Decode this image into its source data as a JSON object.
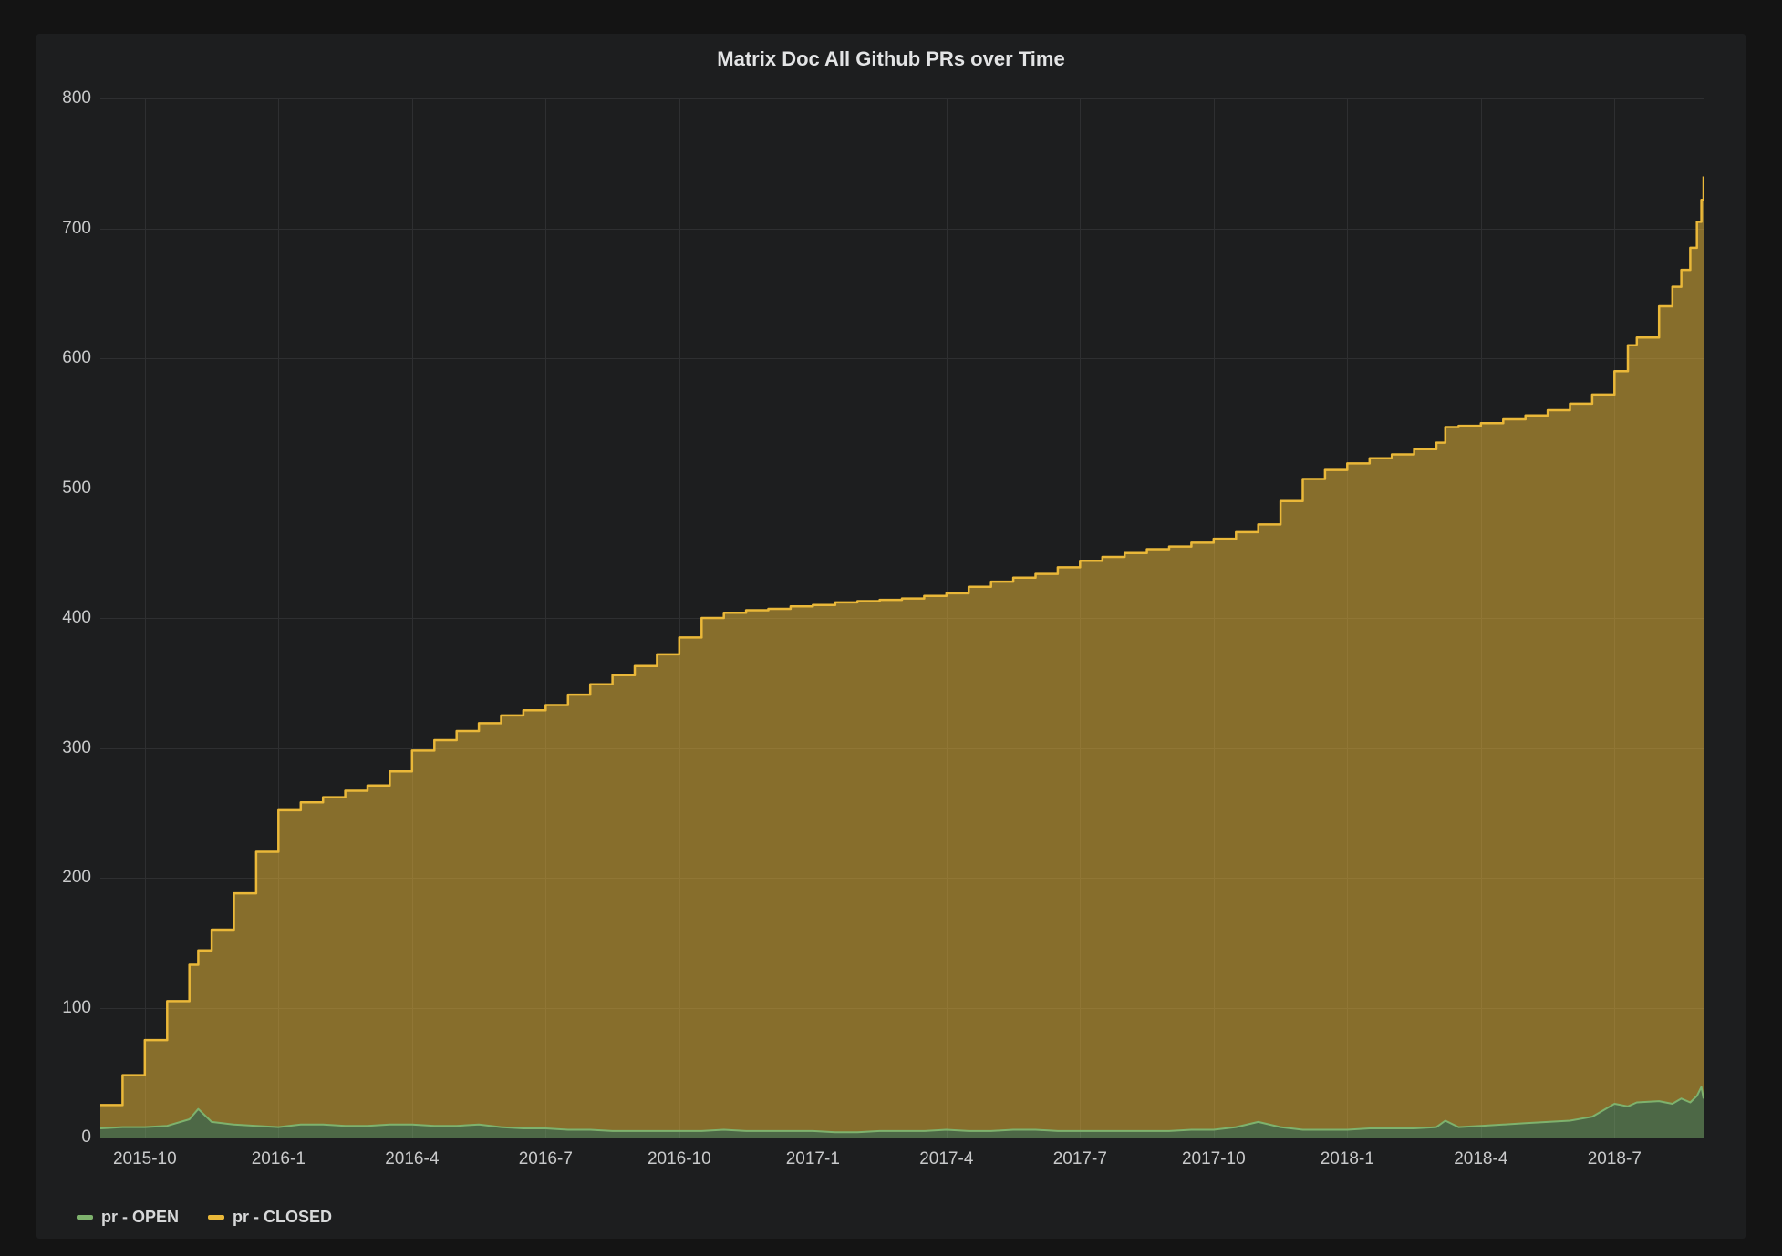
{
  "panel": {
    "title": "Matrix Doc All Github PRs over Time"
  },
  "legend": {
    "items": [
      {
        "label": "pr - OPEN",
        "color": "#7eb26d"
      },
      {
        "label": "pr - CLOSED",
        "color": "#eab839"
      }
    ]
  },
  "colors": {
    "page_bg": "#141414",
    "panel_bg": "#1d1e1f",
    "grid": "#2e2f31",
    "tick_text": "#c9cacb",
    "title_text": "#e3e4e5",
    "legend_text": "#d7d8d9",
    "open_line": "#7eb26d",
    "open_fill": "rgba(126,178,109,0.5)",
    "closed_line": "#eab839",
    "closed_fill": "rgba(234,184,57,0.52)"
  },
  "chart_data": {
    "type": "area",
    "stacked": true,
    "title": "Matrix Doc All Github PRs over Time",
    "xlabel": "",
    "ylabel": "",
    "grid": true,
    "legend_position": "bottom-left",
    "ylim": [
      0,
      800
    ],
    "y_ticks": [
      0,
      100,
      200,
      300,
      400,
      500,
      600,
      700,
      800
    ],
    "x_axis": {
      "unit": "months since 2015-09",
      "start": "2015-09",
      "end": "2018-09",
      "months_span": 36,
      "ticks": [
        {
          "m": 1,
          "label": "2015-10"
        },
        {
          "m": 4,
          "label": "2016-1"
        },
        {
          "m": 7,
          "label": "2016-4"
        },
        {
          "m": 10,
          "label": "2016-7"
        },
        {
          "m": 13,
          "label": "2016-10"
        },
        {
          "m": 16,
          "label": "2017-1"
        },
        {
          "m": 19,
          "label": "2017-4"
        },
        {
          "m": 22,
          "label": "2017-7"
        },
        {
          "m": 25,
          "label": "2017-10"
        },
        {
          "m": 28,
          "label": "2018-1"
        },
        {
          "m": 31,
          "label": "2018-4"
        },
        {
          "m": 34,
          "label": "2018-7"
        }
      ]
    },
    "series": [
      {
        "name": "pr - OPEN",
        "color": "#7eb26d",
        "fill": "rgba(126,178,109,0.5)",
        "interpolation": "linear"
      },
      {
        "name": "pr - CLOSED",
        "color": "#eab839",
        "fill": "rgba(234,184,57,0.52)",
        "interpolation": "step-after"
      }
    ],
    "points_format": [
      "month_index",
      "open",
      "closed"
    ],
    "points": [
      [
        0,
        7,
        18
      ],
      [
        0.5,
        8,
        40
      ],
      [
        1,
        8,
        67
      ],
      [
        1.5,
        9,
        96
      ],
      [
        2,
        14,
        119
      ],
      [
        2.2,
        22,
        122
      ],
      [
        2.5,
        12,
        148
      ],
      [
        3,
        10,
        178
      ],
      [
        3.5,
        9,
        211
      ],
      [
        4,
        8,
        244
      ],
      [
        4.5,
        10,
        248
      ],
      [
        5,
        10,
        252
      ],
      [
        5.5,
        9,
        258
      ],
      [
        6,
        9,
        262
      ],
      [
        6.5,
        10,
        272
      ],
      [
        7,
        10,
        288
      ],
      [
        7.5,
        9,
        297
      ],
      [
        8,
        9,
        304
      ],
      [
        8.5,
        10,
        309
      ],
      [
        9,
        8,
        317
      ],
      [
        9.5,
        7,
        322
      ],
      [
        10,
        7,
        326
      ],
      [
        10.5,
        6,
        335
      ],
      [
        11,
        6,
        343
      ],
      [
        11.5,
        5,
        351
      ],
      [
        12,
        5,
        358
      ],
      [
        12.5,
        5,
        367
      ],
      [
        13,
        5,
        380
      ],
      [
        13.5,
        5,
        395
      ],
      [
        14,
        6,
        398
      ],
      [
        14.5,
        5,
        401
      ],
      [
        15,
        5,
        402
      ],
      [
        15.5,
        5,
        404
      ],
      [
        16,
        5,
        405
      ],
      [
        16.5,
        4,
        408
      ],
      [
        17,
        4,
        409
      ],
      [
        17.5,
        5,
        409
      ],
      [
        18,
        5,
        410
      ],
      [
        18.5,
        5,
        412
      ],
      [
        19,
        6,
        413
      ],
      [
        19.5,
        5,
        419
      ],
      [
        20,
        5,
        423
      ],
      [
        20.5,
        6,
        425
      ],
      [
        21,
        6,
        428
      ],
      [
        21.5,
        5,
        434
      ],
      [
        22,
        5,
        439
      ],
      [
        22.5,
        5,
        442
      ],
      [
        23,
        5,
        445
      ],
      [
        23.5,
        5,
        448
      ],
      [
        24,
        5,
        450
      ],
      [
        24.5,
        6,
        452
      ],
      [
        25,
        6,
        455
      ],
      [
        25.5,
        8,
        458
      ],
      [
        26,
        12,
        460
      ],
      [
        26.5,
        8,
        482
      ],
      [
        27,
        6,
        501
      ],
      [
        27.5,
        6,
        508
      ],
      [
        28,
        6,
        513
      ],
      [
        28.5,
        7,
        516
      ],
      [
        29,
        7,
        519
      ],
      [
        29.5,
        7,
        523
      ],
      [
        30,
        8,
        527
      ],
      [
        30.2,
        13,
        534
      ],
      [
        30.5,
        8,
        540
      ],
      [
        31,
        9,
        541
      ],
      [
        31.5,
        10,
        543
      ],
      [
        32,
        11,
        545
      ],
      [
        32.5,
        12,
        548
      ],
      [
        33,
        13,
        552
      ],
      [
        33.5,
        16,
        556
      ],
      [
        34,
        26,
        564
      ],
      [
        34.3,
        24,
        586
      ],
      [
        34.5,
        27,
        589
      ],
      [
        35,
        28,
        612
      ],
      [
        35.3,
        26,
        629
      ],
      [
        35.5,
        30,
        638
      ],
      [
        35.7,
        27,
        658
      ],
      [
        35.85,
        32,
        673
      ],
      [
        35.95,
        39,
        683
      ],
      [
        36,
        30,
        710
      ]
    ]
  }
}
